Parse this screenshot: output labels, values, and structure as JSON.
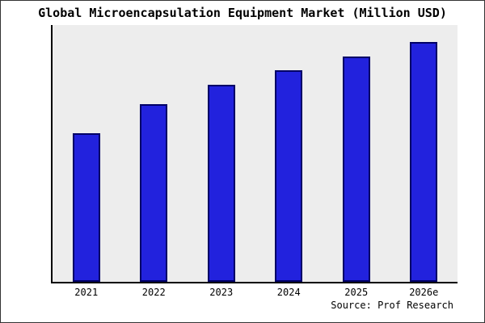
{
  "chart_data": {
    "type": "bar",
    "title": "Global Microencapsulation Equipment Market (Million USD)",
    "categories": [
      "2021",
      "2022",
      "2023",
      "2024",
      "2025",
      "2026e"
    ],
    "values": [
      62,
      74,
      82,
      88,
      94,
      100
    ],
    "ylim": [
      0,
      107
    ],
    "xlabel": "",
    "ylabel": "",
    "grid": false,
    "legend": false,
    "bar_color": "#2222dd",
    "bar_border_color": "#000066",
    "plot_background": "#ededed"
  },
  "source": "Source: Prof Research"
}
